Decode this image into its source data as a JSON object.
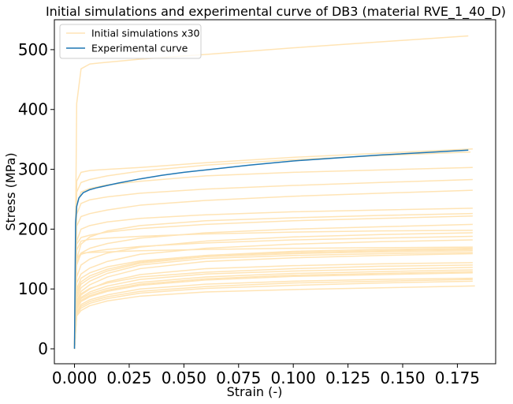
{
  "chart_data": {
    "type": "line",
    "title": "Initial simulations and experimental curve of DB3 (material RVE_1_40_D)",
    "xlabel": "Strain (-)",
    "ylabel": "Stress (MPa)",
    "xlim": [
      -0.0092,
      0.1925
    ],
    "ylim": [
      -25,
      550
    ],
    "xticks": [
      0.0,
      0.025,
      0.05,
      0.075,
      0.1,
      0.125,
      0.15,
      0.175
    ],
    "xtick_labels": [
      "0.000",
      "0.025",
      "0.050",
      "0.075",
      "0.100",
      "0.125",
      "0.150",
      "0.175"
    ],
    "yticks": [
      0,
      100,
      200,
      300,
      400,
      500
    ],
    "ytick_labels": [
      "0",
      "100",
      "200",
      "300",
      "400",
      "500"
    ],
    "grid": false,
    "legend_position": "top-left",
    "legend": [
      {
        "label": "Initial simulations x30",
        "color": "#ffe4b5"
      },
      {
        "label": "Experimental curve",
        "color": "#1f77b4"
      }
    ],
    "simulation_color": "#ffe4b5",
    "experimental_color": "#1f77b4",
    "simulations": [
      {
        "x": [
          0,
          0.001,
          0.003,
          0.007,
          0.015,
          0.03,
          0.06,
          0.1,
          0.14,
          0.18
        ],
        "y": [
          0,
          410,
          468,
          476,
          479,
          484,
          492,
          503,
          513,
          523
        ]
      },
      {
        "x": [
          0,
          0.001,
          0.003,
          0.007,
          0.015,
          0.03,
          0.06,
          0.1,
          0.14,
          0.182
        ],
        "y": [
          0,
          280,
          295,
          298,
          300,
          303,
          311,
          320,
          327,
          334
        ]
      },
      {
        "x": [
          0,
          0.001,
          0.003,
          0.007,
          0.015,
          0.03,
          0.06,
          0.1,
          0.14,
          0.181
        ],
        "y": [
          0,
          262,
          278,
          283,
          289,
          297,
          307,
          316,
          323,
          329
        ]
      },
      {
        "x": [
          0,
          0.001,
          0.003,
          0.007,
          0.015,
          0.03,
          0.06,
          0.1,
          0.14,
          0.182
        ],
        "y": [
          0,
          240,
          262,
          268,
          274,
          280,
          289,
          295,
          299,
          303
        ]
      },
      {
        "x": [
          0,
          0.001,
          0.003,
          0.007,
          0.015,
          0.03,
          0.06,
          0.1,
          0.14,
          0.182
        ],
        "y": [
          0,
          225,
          243,
          249,
          254,
          260,
          267,
          273,
          278,
          283
        ]
      },
      {
        "x": [
          0,
          0.001,
          0.003,
          0.007,
          0.015,
          0.03,
          0.06,
          0.1,
          0.14,
          0.182
        ],
        "y": [
          0,
          205,
          221,
          226,
          232,
          240,
          248,
          255,
          260,
          265
        ]
      },
      {
        "x": [
          0,
          0.001,
          0.003,
          0.007,
          0.015,
          0.03,
          0.06,
          0.1,
          0.14,
          0.182
        ],
        "y": [
          0,
          180,
          200,
          206,
          212,
          218,
          224,
          229,
          232,
          235
        ]
      },
      {
        "x": [
          0,
          0.001,
          0.003,
          0.007,
          0.015,
          0.03,
          0.06,
          0.1,
          0.14,
          0.182
        ],
        "y": [
          0,
          150,
          175,
          187,
          197,
          206,
          214,
          219,
          223,
          226
        ]
      },
      {
        "x": [
          0,
          0.001,
          0.003,
          0.007,
          0.015,
          0.03,
          0.06,
          0.1,
          0.14,
          0.182
        ],
        "y": [
          0,
          175,
          186,
          190,
          195,
          201,
          208,
          214,
          218,
          222
        ]
      },
      {
        "x": [
          0,
          0.001,
          0.003,
          0.007,
          0.015,
          0.03,
          0.06,
          0.1,
          0.14,
          0.182
        ],
        "y": [
          0,
          140,
          160,
          168,
          176,
          185,
          194,
          200,
          204,
          208
        ]
      },
      {
        "x": [
          0,
          0.001,
          0.003,
          0.007,
          0.015,
          0.03,
          0.06,
          0.1,
          0.14,
          0.182
        ],
        "y": [
          0,
          165,
          180,
          183,
          185,
          188,
          192,
          195,
          197,
          198
        ]
      },
      {
        "x": [
          0,
          0.001,
          0.003,
          0.007,
          0.015,
          0.03,
          0.06,
          0.1,
          0.14,
          0.182
        ],
        "y": [
          0,
          120,
          140,
          150,
          160,
          170,
          180,
          187,
          191,
          194
        ]
      },
      {
        "x": [
          0,
          0.001,
          0.003,
          0.007,
          0.015,
          0.03,
          0.06,
          0.1,
          0.14,
          0.182
        ],
        "y": [
          0,
          145,
          158,
          162,
          166,
          171,
          177,
          182,
          185,
          188
        ]
      },
      {
        "x": [
          0,
          0.001,
          0.003,
          0.007,
          0.015,
          0.03,
          0.06,
          0.1,
          0.14,
          0.182
        ],
        "y": [
          0,
          110,
          125,
          135,
          146,
          158,
          168,
          175,
          179,
          182
        ]
      },
      {
        "x": [
          0,
          0.001,
          0.003,
          0.007,
          0.015,
          0.03,
          0.06,
          0.1,
          0.14,
          0.182
        ],
        "y": [
          0,
          150,
          160,
          161,
          162,
          164,
          166,
          168,
          169,
          170
        ]
      },
      {
        "x": [
          0,
          0.001,
          0.003,
          0.007,
          0.015,
          0.03,
          0.06,
          0.1,
          0.14,
          0.182
        ],
        "y": [
          0,
          95,
          112,
          122,
          133,
          145,
          156,
          163,
          166,
          168
        ]
      },
      {
        "x": [
          0,
          0.001,
          0.003,
          0.007,
          0.015,
          0.03,
          0.06,
          0.1,
          0.14,
          0.182
        ],
        "y": [
          0,
          100,
          118,
          127,
          137,
          147,
          156,
          161,
          164,
          166
        ]
      },
      {
        "x": [
          0,
          0.001,
          0.003,
          0.007,
          0.015,
          0.03,
          0.06,
          0.1,
          0.14,
          0.182
        ],
        "y": [
          0,
          90,
          108,
          118,
          130,
          143,
          154,
          159,
          162,
          164
        ]
      },
      {
        "x": [
          0,
          0.001,
          0.003,
          0.007,
          0.015,
          0.03,
          0.06,
          0.1,
          0.14,
          0.182
        ],
        "y": [
          0,
          85,
          102,
          113,
          126,
          140,
          151,
          156,
          159,
          161
        ]
      },
      {
        "x": [
          0,
          0.001,
          0.003,
          0.007,
          0.015,
          0.03,
          0.06,
          0.1,
          0.14,
          0.182
        ],
        "y": [
          0,
          80,
          96,
          107,
          120,
          134,
          146,
          152,
          156,
          159
        ]
      },
      {
        "x": [
          0,
          0.001,
          0.003,
          0.007,
          0.015,
          0.03,
          0.06,
          0.1,
          0.14,
          0.182
        ],
        "y": [
          0,
          75,
          90,
          100,
          112,
          124,
          134,
          139,
          142,
          144
        ]
      },
      {
        "x": [
          0,
          0.001,
          0.003,
          0.007,
          0.015,
          0.03,
          0.06,
          0.1,
          0.14,
          0.182
        ],
        "y": [
          0,
          78,
          92,
          101,
          110,
          120,
          128,
          134,
          138,
          140
        ]
      },
      {
        "x": [
          0,
          0.001,
          0.003,
          0.007,
          0.015,
          0.03,
          0.06,
          0.1,
          0.14,
          0.182
        ],
        "y": [
          0,
          72,
          86,
          95,
          105,
          116,
          125,
          130,
          133,
          136
        ]
      },
      {
        "x": [
          0,
          0.001,
          0.003,
          0.007,
          0.015,
          0.03,
          0.06,
          0.1,
          0.14,
          0.182
        ],
        "y": [
          0,
          70,
          84,
          92,
          101,
          111,
          120,
          126,
          129,
          132
        ]
      },
      {
        "x": [
          0,
          0.001,
          0.003,
          0.007,
          0.015,
          0.03,
          0.06,
          0.1,
          0.14,
          0.182
        ],
        "y": [
          0,
          68,
          81,
          89,
          98,
          108,
          117,
          123,
          126,
          129
        ]
      },
      {
        "x": [
          0,
          0.001,
          0.003,
          0.007,
          0.015,
          0.03,
          0.06,
          0.1,
          0.14,
          0.182
        ],
        "y": [
          0,
          66,
          79,
          87,
          96,
          106,
          115,
          121,
          124,
          127
        ]
      },
      {
        "x": [
          0,
          0.001,
          0.003,
          0.007,
          0.015,
          0.03,
          0.06,
          0.1,
          0.14,
          0.182
        ],
        "y": [
          0,
          62,
          74,
          82,
          90,
          100,
          108,
          113,
          116,
          118
        ]
      },
      {
        "x": [
          0,
          0.001,
          0.003,
          0.007,
          0.015,
          0.03,
          0.06,
          0.1,
          0.14,
          0.182
        ],
        "y": [
          0,
          60,
          71,
          79,
          87,
          96,
          104,
          110,
          113,
          116
        ]
      },
      {
        "x": [
          0,
          0.001,
          0.003,
          0.007,
          0.015,
          0.03,
          0.06,
          0.1,
          0.14,
          0.183
        ],
        "y": [
          0,
          55,
          64,
          72,
          80,
          88,
          95,
          99,
          102,
          105
        ]
      },
      {
        "x": [
          0,
          0.001,
          0.003,
          0.007,
          0.015,
          0.03,
          0.06,
          0.1,
          0.14,
          0.182
        ],
        "y": [
          0,
          58,
          68,
          76,
          84,
          93,
          101,
          106,
          110,
          113
        ]
      }
    ],
    "experimental": {
      "x": [
        0,
        0.0005,
        0.001,
        0.002,
        0.004,
        0.007,
        0.01,
        0.015,
        0.02,
        0.03,
        0.04,
        0.05,
        0.06,
        0.08,
        0.1,
        0.12,
        0.14,
        0.16,
        0.18
      ],
      "y": [
        0,
        210,
        238,
        252,
        261,
        266,
        269,
        273,
        277,
        284,
        290,
        295,
        299,
        307,
        314,
        319,
        324,
        328,
        332
      ]
    }
  }
}
